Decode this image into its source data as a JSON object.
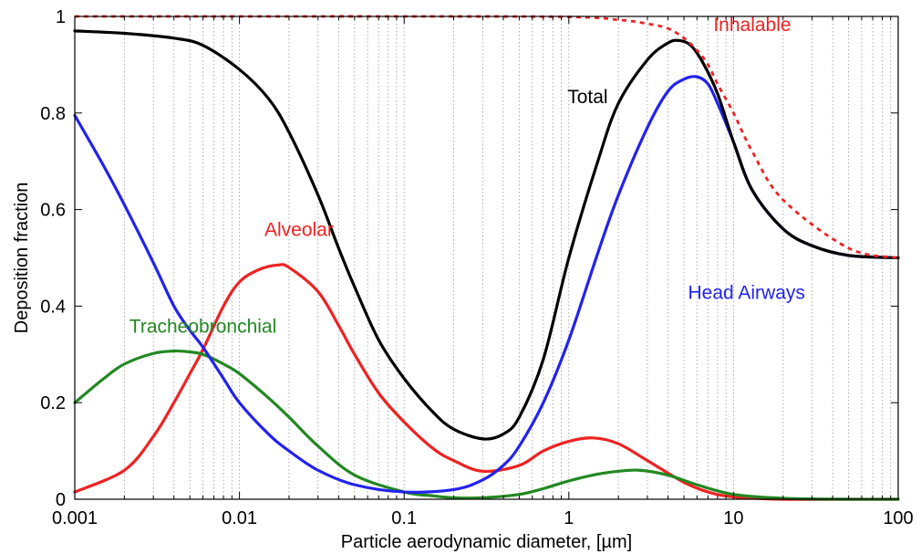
{
  "chart_data": {
    "type": "line",
    "xscale": "log",
    "xlim": [
      0.001,
      100
    ],
    "ylim": [
      0,
      1
    ],
    "xlabel": "Particle aerodynamic diameter, [µm]",
    "ylabel": "Deposition fraction",
    "grid": "vertical dotted minor",
    "x_ticks": [
      "0.001",
      "0.01",
      "0.1",
      "1",
      "10",
      "100"
    ],
    "y_ticks": [
      "0",
      "0.2",
      "0.4",
      "0.6",
      "0.8",
      "1"
    ],
    "series": [
      {
        "name": "Inhalable",
        "color": "#ee2222",
        "dash": "dashed",
        "x": [
          0.001,
          0.01,
          0.1,
          1,
          2,
          3,
          4,
          5,
          6,
          7,
          8,
          10,
          13,
          20,
          50,
          100
        ],
        "y": [
          1.0,
          1.0,
          1.0,
          0.999,
          0.993,
          0.985,
          0.975,
          0.955,
          0.93,
          0.9,
          0.86,
          0.8,
          0.72,
          0.62,
          0.52,
          0.5
        ]
      },
      {
        "name": "Total",
        "color": "#000000",
        "dash": "solid",
        "x": [
          0.001,
          0.002,
          0.004,
          0.006,
          0.01,
          0.015,
          0.02,
          0.03,
          0.04,
          0.05,
          0.07,
          0.1,
          0.15,
          0.2,
          0.3,
          0.4,
          0.5,
          0.7,
          1.0,
          1.5,
          2,
          3,
          4,
          4.7,
          5.5,
          6.5,
          8,
          10,
          13,
          20,
          30,
          50,
          100
        ],
        "y": [
          0.97,
          0.965,
          0.955,
          0.94,
          0.89,
          0.83,
          0.76,
          0.63,
          0.52,
          0.44,
          0.33,
          0.25,
          0.18,
          0.145,
          0.125,
          0.135,
          0.17,
          0.29,
          0.5,
          0.7,
          0.82,
          0.91,
          0.945,
          0.95,
          0.94,
          0.905,
          0.84,
          0.74,
          0.64,
          0.56,
          0.525,
          0.505,
          0.5
        ]
      },
      {
        "name": "Head Airways",
        "color": "#2222ee",
        "dash": "solid",
        "x": [
          0.001,
          0.0015,
          0.002,
          0.003,
          0.004,
          0.005,
          0.006,
          0.008,
          0.01,
          0.015,
          0.02,
          0.03,
          0.05,
          0.1,
          0.2,
          0.3,
          0.4,
          0.5,
          0.7,
          1.0,
          1.5,
          2,
          3,
          4,
          5,
          6,
          7,
          8,
          10,
          13,
          20,
          30,
          50,
          100
        ],
        "y": [
          0.795,
          0.69,
          0.61,
          0.49,
          0.4,
          0.35,
          0.315,
          0.25,
          0.2,
          0.135,
          0.1,
          0.06,
          0.03,
          0.015,
          0.02,
          0.04,
          0.07,
          0.11,
          0.2,
          0.33,
          0.51,
          0.63,
          0.77,
          0.845,
          0.87,
          0.875,
          0.86,
          0.82,
          0.74,
          0.64,
          0.56,
          0.525,
          0.505,
          0.5
        ]
      },
      {
        "name": "Alveolar",
        "color": "#ee2222",
        "dash": "solid",
        "x": [
          0.001,
          0.002,
          0.003,
          0.004,
          0.005,
          0.006,
          0.008,
          0.01,
          0.013,
          0.017,
          0.02,
          0.03,
          0.04,
          0.05,
          0.07,
          0.1,
          0.15,
          0.2,
          0.3,
          0.5,
          0.7,
          1.0,
          1.4,
          2,
          3,
          5,
          7,
          10,
          20,
          50,
          100
        ],
        "y": [
          0.015,
          0.06,
          0.13,
          0.2,
          0.26,
          0.31,
          0.4,
          0.45,
          0.475,
          0.485,
          0.48,
          0.43,
          0.36,
          0.3,
          0.22,
          0.16,
          0.105,
          0.08,
          0.058,
          0.07,
          0.1,
          0.12,
          0.127,
          0.115,
          0.08,
          0.035,
          0.015,
          0.005,
          0.0,
          0.0,
          0.0
        ]
      },
      {
        "name": "Tracheobronchial",
        "color": "#228822",
        "dash": "solid",
        "x": [
          0.001,
          0.0015,
          0.002,
          0.003,
          0.004,
          0.005,
          0.006,
          0.008,
          0.01,
          0.015,
          0.02,
          0.03,
          0.05,
          0.1,
          0.15,
          0.2,
          0.3,
          0.5,
          0.7,
          1.0,
          1.5,
          2,
          2.7,
          4,
          6,
          10,
          20,
          50,
          100
        ],
        "y": [
          0.2,
          0.25,
          0.28,
          0.302,
          0.307,
          0.305,
          0.3,
          0.28,
          0.26,
          0.21,
          0.17,
          0.11,
          0.05,
          0.015,
          0.007,
          0.003,
          0.003,
          0.01,
          0.022,
          0.038,
          0.052,
          0.058,
          0.06,
          0.05,
          0.03,
          0.01,
          0.002,
          0.0,
          0.0
        ]
      }
    ],
    "annotations": [
      {
        "text": "Inhalable",
        "color": "#ee2222",
        "x": 13,
        "y": 0.97
      },
      {
        "text": "Total",
        "color": "#000000",
        "x": 1.3,
        "y": 0.82
      },
      {
        "text": "Head Airways",
        "color": "#2222ee",
        "x": 12,
        "y": 0.415
      },
      {
        "text": "Alveolar",
        "color": "#ee2222",
        "x": 0.023,
        "y": 0.545
      },
      {
        "text": "Tracheobronchial",
        "color": "#228822",
        "x": 0.006,
        "y": 0.345
      }
    ]
  }
}
